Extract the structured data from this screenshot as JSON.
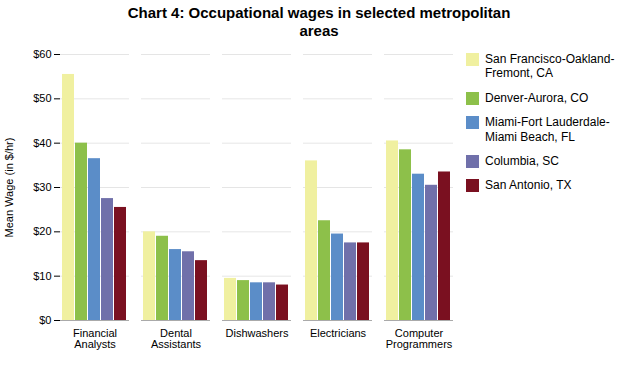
{
  "chart_data": {
    "type": "bar",
    "title": "Chart 4: Occupational wages in selected metropolitan\nareas",
    "ylabel": "Mean Wage (in $/hr)",
    "categories": [
      "Financial\nAnalysts",
      "Dental\nAssistants",
      "Dishwashers",
      "Electricians",
      "Computer\nProgrammers"
    ],
    "series": [
      {
        "name": "San Francisco-Oakland-\nFremont, CA",
        "color": "#F0F0A0",
        "values": [
          55.5,
          20.0,
          9.5,
          36.0,
          40.5
        ]
      },
      {
        "name": "Denver-Aurora, CO",
        "color": "#8DC04A",
        "values": [
          40.0,
          19.0,
          9.0,
          22.5,
          38.5
        ]
      },
      {
        "name": "Miami-Fort Lauderdale-\nMiami Beach, FL",
        "color": "#5B8DC8",
        "values": [
          36.5,
          16.0,
          8.5,
          19.5,
          33.0
        ]
      },
      {
        "name": "Columbia, SC",
        "color": "#7070AA",
        "values": [
          27.5,
          15.5,
          8.5,
          17.5,
          30.5
        ]
      },
      {
        "name": "San Antonio, TX",
        "color": "#7A1020",
        "values": [
          25.5,
          13.5,
          8.0,
          17.5,
          33.5
        ]
      }
    ],
    "ylim": [
      0,
      60
    ],
    "yticks": [
      {
        "value": 0,
        "label": "$0"
      },
      {
        "value": 10,
        "label": "$10"
      },
      {
        "value": 20,
        "label": "$20"
      },
      {
        "value": 30,
        "label": "$30"
      },
      {
        "value": 40,
        "label": "$40"
      },
      {
        "value": 50,
        "label": "$50"
      },
      {
        "value": 60,
        "label": "$60"
      }
    ],
    "grid": true,
    "legend": "right"
  }
}
